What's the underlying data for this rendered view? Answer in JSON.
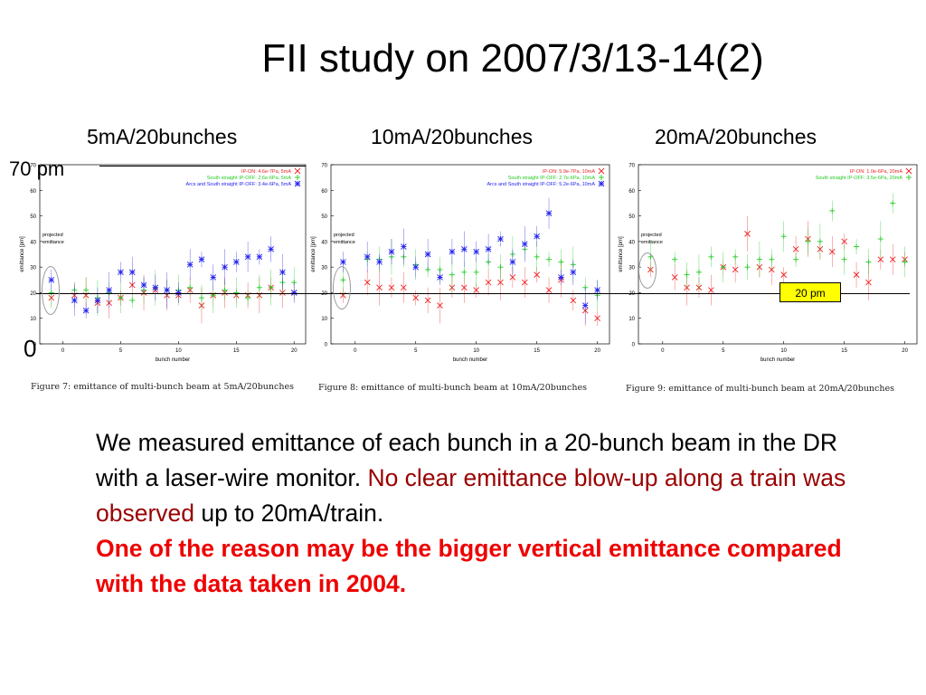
{
  "slide": {
    "title": "FII study on 2007/3/13-14(2)",
    "y_top_label": "70 pm",
    "y_zero_label": "0",
    "panel_labels": [
      "5mA/20bunches",
      "10mA/20bunches",
      "20mA/20bunches"
    ],
    "ref_box_label": "20 pm",
    "captions": [
      "Figure 7: emittance of multi-bunch beam at 5mA/20bunches",
      "Figure 8: emittance of multi-bunch beam at 10mA/20bunches",
      "Figure 9: emittance of multi-bunch beam at 20mA/20bunches"
    ],
    "body": {
      "p1": "We measured emittance of each bunch in a 20-bunch beam in the DR with a laser-wire monitor. ",
      "p1_highlight": "No clear emittance blow-up along a train was observed",
      "p1_end": " up to 20mA/train.",
      "p2": "One of the reason may be the bigger vertical emittance compared with the data taken in 2004."
    },
    "colors": {
      "red_series": "#ee2222",
      "green_series": "#22cc22",
      "blue_series": "#2222ee",
      "highlight_text": "#990000",
      "bold_red": "#ee0000",
      "ref_box": "#ffff00"
    }
  },
  "chart_data": [
    {
      "type": "scatter",
      "title": "",
      "xlabel": "bunch number",
      "ylabel": "emittance [pm]",
      "xlim": [
        -2,
        21
      ],
      "ylim": [
        0,
        70
      ],
      "xticks": [
        0,
        5,
        10,
        15,
        20
      ],
      "yticks": [
        0,
        10,
        20,
        30,
        40,
        50,
        60,
        70
      ],
      "annotation": "projected emittance",
      "legend_position": "top-right",
      "series": [
        {
          "name": "IP-ON: 4.6e-7Pa, 5mA",
          "marker": "x",
          "color": "#ee2222",
          "points": [
            [
              -1,
              18
            ],
            [
              1,
              19
            ],
            [
              2,
              19
            ],
            [
              3,
              16
            ],
            [
              4,
              16
            ],
            [
              5,
              18
            ],
            [
              6,
              23
            ],
            [
              7,
              20
            ],
            [
              8,
              21
            ],
            [
              9,
              19
            ],
            [
              10,
              19
            ],
            [
              11,
              21
            ],
            [
              12,
              15
            ],
            [
              13,
              19
            ],
            [
              14,
              20
            ],
            [
              15,
              19
            ],
            [
              16,
              19
            ],
            [
              17,
              19
            ],
            [
              18,
              22
            ],
            [
              19,
              20
            ],
            [
              20,
              20
            ]
          ]
        },
        {
          "name": "South straight IP-OFF: 2.6e-6Pa, 5mA",
          "marker": "+",
          "color": "#22cc22",
          "points": [
            [
              -1,
              20
            ],
            [
              1,
              21
            ],
            [
              2,
              21
            ],
            [
              3,
              18
            ],
            [
              4,
              20
            ],
            [
              5,
              18
            ],
            [
              6,
              17
            ],
            [
              7,
              21
            ],
            [
              8,
              22
            ],
            [
              9,
              21
            ],
            [
              10,
              21
            ],
            [
              11,
              22
            ],
            [
              12,
              18
            ],
            [
              13,
              19
            ],
            [
              14,
              21
            ],
            [
              15,
              20
            ],
            [
              16,
              18
            ],
            [
              17,
              22
            ],
            [
              18,
              22
            ],
            [
              19,
              24
            ],
            [
              20,
              24
            ]
          ]
        },
        {
          "name": "Arcs and South straight IP-OFF: 3.4e-6Pa, 5mA",
          "marker": "*",
          "color": "#2222ee",
          "points": [
            [
              -1,
              25
            ],
            [
              1,
              17
            ],
            [
              2,
              13
            ],
            [
              3,
              17
            ],
            [
              4,
              21
            ],
            [
              5,
              28
            ],
            [
              6,
              28
            ],
            [
              7,
              23
            ],
            [
              8,
              22
            ],
            [
              9,
              21
            ],
            [
              10,
              20
            ],
            [
              11,
              31
            ],
            [
              12,
              33
            ],
            [
              13,
              26
            ],
            [
              14,
              30
            ],
            [
              15,
              32
            ],
            [
              16,
              34
            ],
            [
              17,
              34
            ],
            [
              18,
              37
            ],
            [
              19,
              28
            ],
            [
              20,
              20
            ]
          ]
        }
      ]
    },
    {
      "type": "scatter",
      "title": "",
      "xlabel": "bunch number",
      "ylabel": "emittance [pm]",
      "xlim": [
        -2,
        21
      ],
      "ylim": [
        0,
        70
      ],
      "xticks": [
        0,
        5,
        10,
        15,
        20
      ],
      "yticks": [
        0,
        10,
        20,
        30,
        40,
        50,
        60,
        70
      ],
      "annotation": "projected emittance",
      "legend_position": "top-right",
      "series": [
        {
          "name": "IP-ON: 5.9e-7Pa, 10mA",
          "marker": "x",
          "color": "#ee2222",
          "points": [
            [
              -1,
              19
            ],
            [
              1,
              24
            ],
            [
              2,
              22
            ],
            [
              3,
              22
            ],
            [
              4,
              22
            ],
            [
              5,
              18
            ],
            [
              6,
              17
            ],
            [
              7,
              15
            ],
            [
              8,
              22
            ],
            [
              9,
              22
            ],
            [
              10,
              21
            ],
            [
              11,
              24
            ],
            [
              12,
              24
            ],
            [
              13,
              26
            ],
            [
              14,
              24
            ],
            [
              15,
              27
            ],
            [
              16,
              21
            ],
            [
              17,
              25
            ],
            [
              18,
              17
            ],
            [
              19,
              13
            ],
            [
              20,
              10
            ]
          ]
        },
        {
          "name": "South straight IP-OFF: 2.7e-6Pa, 10mA",
          "marker": "+",
          "color": "#22cc22",
          "points": [
            [
              -1,
              25
            ],
            [
              1,
              33
            ],
            [
              2,
              33
            ],
            [
              3,
              34
            ],
            [
              4,
              34
            ],
            [
              5,
              31
            ],
            [
              6,
              29
            ],
            [
              7,
              29
            ],
            [
              8,
              27
            ],
            [
              9,
              28
            ],
            [
              10,
              28
            ],
            [
              11,
              32
            ],
            [
              12,
              30
            ],
            [
              13,
              35
            ],
            [
              14,
              37
            ],
            [
              15,
              34
            ],
            [
              16,
              33
            ],
            [
              17,
              32
            ],
            [
              18,
              31
            ],
            [
              19,
              22
            ],
            [
              20,
              19
            ]
          ]
        },
        {
          "name": "Arcs and South straight IP-OFF: 5.2e-6Pa, 10mA",
          "marker": "*",
          "color": "#2222ee",
          "points": [
            [
              -1,
              32
            ],
            [
              1,
              34
            ],
            [
              2,
              32
            ],
            [
              3,
              36
            ],
            [
              4,
              38
            ],
            [
              5,
              30
            ],
            [
              6,
              35
            ],
            [
              7,
              26
            ],
            [
              8,
              36
            ],
            [
              9,
              37
            ],
            [
              10,
              36
            ],
            [
              11,
              37
            ],
            [
              12,
              41
            ],
            [
              13,
              32
            ],
            [
              14,
              39
            ],
            [
              15,
              42
            ],
            [
              16,
              51
            ],
            [
              17,
              26
            ],
            [
              18,
              28
            ],
            [
              19,
              15
            ],
            [
              20,
              21
            ]
          ]
        }
      ]
    },
    {
      "type": "scatter",
      "title": "",
      "xlabel": "bunch number",
      "ylabel": "emittance [pm]",
      "xlim": [
        -2,
        21
      ],
      "ylim": [
        0,
        70
      ],
      "xticks": [
        0,
        5,
        10,
        15,
        20
      ],
      "yticks": [
        0,
        10,
        20,
        30,
        40,
        50,
        60,
        70
      ],
      "annotation": "projected emittance",
      "legend_position": "top-right",
      "series": [
        {
          "name": "IP-ON: 1.0e-6Pa, 20mA",
          "marker": "x",
          "color": "#ee2222",
          "points": [
            [
              -1,
              29
            ],
            [
              1,
              26
            ],
            [
              2,
              22
            ],
            [
              3,
              22
            ],
            [
              4,
              21
            ],
            [
              5,
              30
            ],
            [
              6,
              29
            ],
            [
              7,
              43
            ],
            [
              8,
              30
            ],
            [
              9,
              29
            ],
            [
              10,
              27
            ],
            [
              11,
              37
            ],
            [
              12,
              41
            ],
            [
              13,
              37
            ],
            [
              14,
              36
            ],
            [
              15,
              40
            ],
            [
              16,
              27
            ],
            [
              17,
              24
            ],
            [
              18,
              33
            ],
            [
              19,
              33
            ],
            [
              20,
              33
            ]
          ]
        },
        {
          "name": "South straight IP-OFF: 3.5e-6Pa, 20mA",
          "marker": "+",
          "color": "#22cc22",
          "points": [
            [
              -1,
              34
            ],
            [
              1,
              33
            ],
            [
              2,
              27
            ],
            [
              3,
              28
            ],
            [
              4,
              34
            ],
            [
              5,
              30
            ],
            [
              6,
              34
            ],
            [
              7,
              30
            ],
            [
              8,
              33
            ],
            [
              9,
              33
            ],
            [
              10,
              42
            ],
            [
              11,
              33
            ],
            [
              12,
              40
            ],
            [
              13,
              40
            ],
            [
              14,
              52
            ],
            [
              15,
              33
            ],
            [
              16,
              38
            ],
            [
              17,
              32
            ],
            [
              18,
              41
            ],
            [
              19,
              55
            ],
            [
              20,
              32
            ]
          ]
        }
      ]
    }
  ]
}
